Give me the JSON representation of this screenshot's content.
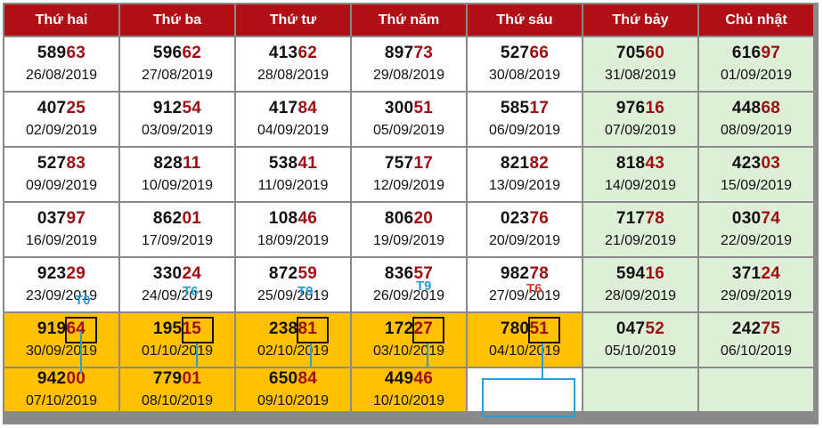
{
  "headers": [
    "Thứ hai",
    "Thứ ba",
    "Thứ tư",
    "Thứ năm",
    "Thứ sáu",
    "Thứ bảy",
    "Chủ nhật"
  ],
  "rows": [
    [
      {
        "a": "589",
        "b": "63",
        "date": "26/08/2019"
      },
      {
        "a": "596",
        "b": "62",
        "date": "27/08/2019"
      },
      {
        "a": "413",
        "b": "62",
        "date": "28/08/2019"
      },
      {
        "a": "897",
        "b": "73",
        "date": "29/08/2019"
      },
      {
        "a": "527",
        "b": "66",
        "date": "30/08/2019"
      },
      {
        "a": "705",
        "b": "60",
        "date": "31/08/2019"
      },
      {
        "a": "616",
        "b": "97",
        "date": "01/09/2019"
      }
    ],
    [
      {
        "a": "407",
        "b": "25",
        "date": "02/09/2019"
      },
      {
        "a": "912",
        "b": "54",
        "date": "03/09/2019"
      },
      {
        "a": "417",
        "b": "84",
        "date": "04/09/2019"
      },
      {
        "a": "300",
        "b": "51",
        "date": "05/09/2019"
      },
      {
        "a": "585",
        "b": "17",
        "date": "06/09/2019"
      },
      {
        "a": "976",
        "b": "16",
        "date": "07/09/2019"
      },
      {
        "a": "448",
        "b": "68",
        "date": "08/09/2019"
      }
    ],
    [
      {
        "a": "527",
        "b": "83",
        "date": "09/09/2019"
      },
      {
        "a": "828",
        "b": "11",
        "date": "10/09/2019"
      },
      {
        "a": "538",
        "b": "41",
        "date": "11/09/2019"
      },
      {
        "a": "757",
        "b": "17",
        "date": "12/09/2019"
      },
      {
        "a": "821",
        "b": "82",
        "date": "13/09/2019"
      },
      {
        "a": "818",
        "b": "43",
        "date": "14/09/2019"
      },
      {
        "a": "423",
        "b": "03",
        "date": "15/09/2019"
      }
    ],
    [
      {
        "a": "037",
        "b": "97",
        "date": "16/09/2019"
      },
      {
        "a": "862",
        "b": "01",
        "date": "17/09/2019"
      },
      {
        "a": "108",
        "b": "46",
        "date": "18/09/2019"
      },
      {
        "a": "806",
        "b": "20",
        "date": "19/09/2019"
      },
      {
        "a": "023",
        "b": "76",
        "date": "20/09/2019"
      },
      {
        "a": "717",
        "b": "78",
        "date": "21/09/2019"
      },
      {
        "a": "030",
        "b": "74",
        "date": "22/09/2019"
      }
    ],
    [
      {
        "a": "923",
        "b": "29",
        "date": "23/09/2019"
      },
      {
        "a": "330",
        "b": "24",
        "date": "24/09/2019"
      },
      {
        "a": "872",
        "b": "59",
        "date": "25/09/2019"
      },
      {
        "a": "836",
        "b": "57",
        "date": "26/09/2019"
      },
      {
        "a": "982",
        "b": "78",
        "date": "27/09/2019"
      },
      {
        "a": "594",
        "b": "16",
        "date": "28/09/2019"
      },
      {
        "a": "371",
        "b": "24",
        "date": "29/09/2019"
      }
    ],
    [
      {
        "a": "919",
        "b": "64",
        "date": "30/09/2019"
      },
      {
        "a": "195",
        "b": "15",
        "date": "01/10/2019"
      },
      {
        "a": "238",
        "b": "81",
        "date": "02/10/2019"
      },
      {
        "a": "172",
        "b": "27",
        "date": "03/10/2019"
      },
      {
        "a": "780",
        "b": "51",
        "date": "04/10/2019"
      },
      {
        "a": "047",
        "b": "52",
        "date": "05/10/2019"
      },
      {
        "a": "242",
        "b": "75",
        "date": "06/10/2019"
      }
    ],
    [
      {
        "a": "942",
        "b": "00",
        "date": "07/10/2019"
      },
      {
        "a": "779",
        "b": "01",
        "date": "08/10/2019"
      },
      {
        "a": "650",
        "b": "84",
        "date": "09/10/2019"
      },
      {
        "a": "449",
        "b": "46",
        "date": "10/10/2019"
      }
    ]
  ],
  "annotations": [
    "T0",
    "T6",
    "T9",
    "T9",
    "T6"
  ],
  "colors": {
    "header_bg": "#b01015",
    "weekend_bg": "#ddefd6",
    "highlight_bg": "#ffc000",
    "digit_red": "#a00e14",
    "annotation_blue": "#2a9fd6",
    "annotation_red": "#e0352b"
  }
}
